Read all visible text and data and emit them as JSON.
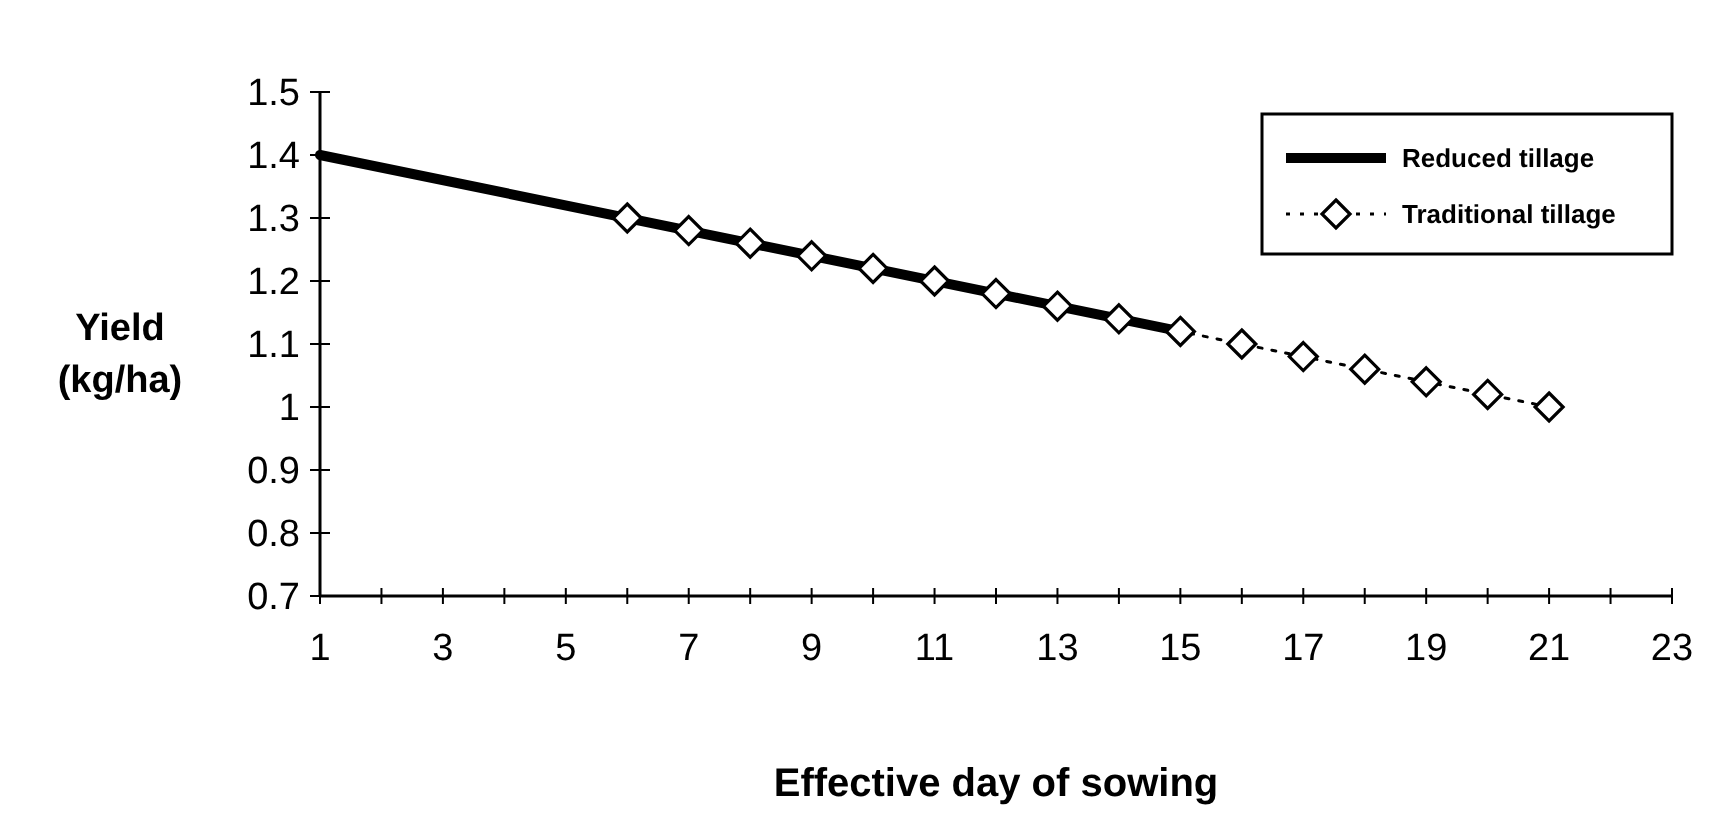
{
  "chart_data": {
    "type": "line",
    "xlabel": "Effective day of sowing",
    "ylabel": "Yield (kg/ha)",
    "xlim": [
      1,
      23
    ],
    "xticks": [
      1,
      {
        "value": 2,
        "label": null
      },
      3,
      {
        "value": 4,
        "label": null
      },
      5,
      {
        "value": 6,
        "label": null
      },
      7,
      {
        "value": 8,
        "label": null
      },
      9,
      {
        "value": 10,
        "label": null
      },
      11,
      {
        "value": 12,
        "label": null
      },
      13,
      {
        "value": 14,
        "label": null
      },
      15,
      {
        "value": 16,
        "label": null
      },
      17,
      {
        "value": 18,
        "label": null
      },
      19,
      {
        "value": 20,
        "label": null
      },
      21,
      {
        "value": 22,
        "label": null
      },
      23
    ],
    "ylim": [
      0.7,
      1.5
    ],
    "yticks": [
      0.7,
      0.8,
      0.9,
      {
        "value": 1,
        "label": "1"
      },
      1.1,
      1.2,
      1.3,
      1.4,
      1.5
    ],
    "grid": false,
    "legend": "top right",
    "series": [
      {
        "name": "Reduced tillage",
        "color": "#000000",
        "x": [
          1,
          15
        ],
        "values": [
          1.4,
          1.12
        ],
        "line_style": "solid"
      },
      {
        "name": "Traditional tillage",
        "color": "#000000",
        "x": [
          6,
          7,
          8,
          9,
          10,
          11,
          12,
          13,
          14,
          15,
          16,
          17,
          18,
          19,
          20,
          21
        ],
        "values": [
          1.3,
          1.28,
          1.26,
          1.24,
          1.22,
          1.2,
          1.18,
          1.16,
          1.14,
          1.12,
          1.1,
          1.08,
          1.06,
          1.04,
          1.02,
          1.0
        ],
        "marker": "diamond",
        "line_style": "dotted"
      }
    ]
  }
}
